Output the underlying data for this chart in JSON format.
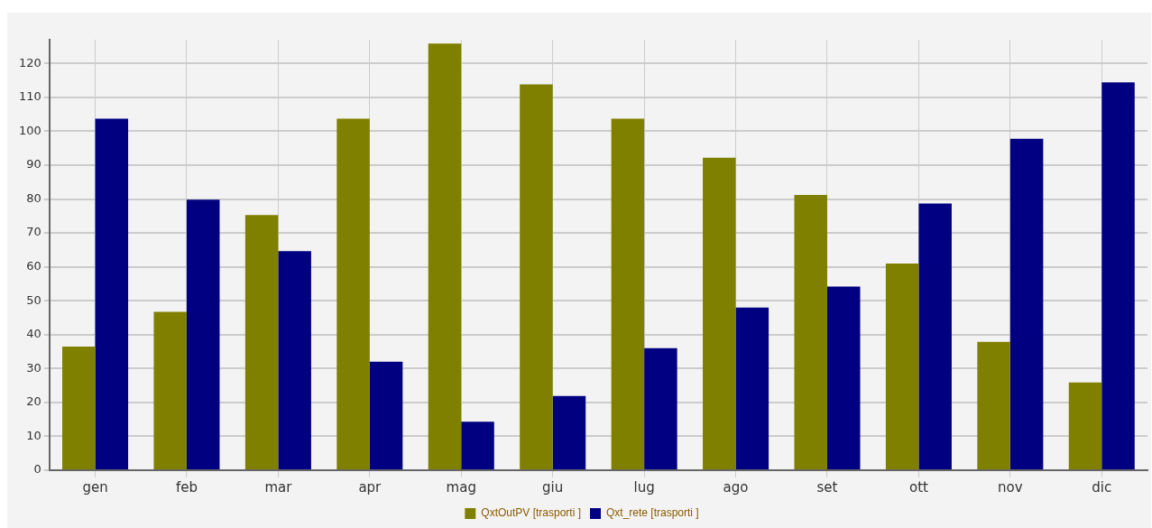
{
  "chart_data": {
    "type": "bar",
    "categories": [
      "gen",
      "feb",
      "mar",
      "apr",
      "mag",
      "giu",
      "lug",
      "ago",
      "set",
      "ott",
      "nov",
      "dic"
    ],
    "series": [
      {
        "name": "QxtOutPV [trasporti ]",
        "color": "#808000",
        "values": [
          36.5,
          46.7,
          75.3,
          103.7,
          125.9,
          113.8,
          103.7,
          92.2,
          81.2,
          61,
          37.9,
          25.9
        ]
      },
      {
        "name": "Qxt_rete [trasporti ]",
        "color": "#000080",
        "values": [
          103.7,
          79.8,
          64.6,
          32,
          14.3,
          21.9,
          36,
          48,
          54.2,
          78.7,
          97.8,
          114.4
        ]
      }
    ],
    "ylim": [
      0,
      127
    ],
    "yticks": [
      0,
      10,
      20,
      30,
      40,
      50,
      60,
      70,
      80,
      90,
      100,
      110,
      120
    ],
    "grid": true,
    "legend": "bottom"
  }
}
